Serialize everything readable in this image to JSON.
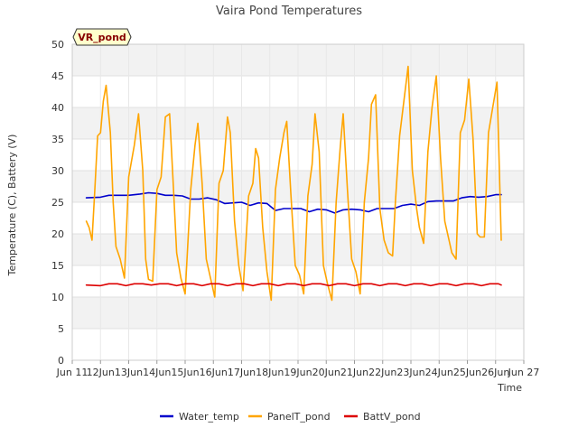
{
  "chart_data": {
    "type": "line",
    "title": "Vaira Pond Temperatures",
    "xlabel": "Time",
    "ylabel": "Temperature (C), Battery (V)",
    "badge": "VR_pond",
    "xlim": [
      11,
      27
    ],
    "ylim": [
      0,
      50
    ],
    "x_ticks": [
      {
        "value": 11,
        "label": "Jun 11"
      },
      {
        "value": 12,
        "label": "12Jun"
      },
      {
        "value": 13,
        "label": "13Jun"
      },
      {
        "value": 14,
        "label": "14Jun"
      },
      {
        "value": 15,
        "label": "15Jun"
      },
      {
        "value": 16,
        "label": "16Jun"
      },
      {
        "value": 17,
        "label": "17Jun"
      },
      {
        "value": 18,
        "label": "18Jun"
      },
      {
        "value": 19,
        "label": "19Jun"
      },
      {
        "value": 20,
        "label": "20Jun"
      },
      {
        "value": 21,
        "label": "21Jun"
      },
      {
        "value": 22,
        "label": "22Jun"
      },
      {
        "value": 23,
        "label": "23Jun"
      },
      {
        "value": 24,
        "label": "24Jun"
      },
      {
        "value": 25,
        "label": "25Jun"
      },
      {
        "value": 26,
        "label": "26Jun"
      },
      {
        "value": 27,
        "label": "Jun 27"
      }
    ],
    "y_ticks": [
      0,
      5,
      10,
      15,
      20,
      25,
      30,
      35,
      40,
      45,
      50
    ],
    "grid": true,
    "legend_position": "bottom",
    "x_unit": "day of June",
    "series": [
      {
        "name": "Water_temp",
        "color": "#0000cc",
        "x": [
          11.5,
          12.0,
          12.3,
          12.7,
          13.0,
          13.4,
          13.7,
          14.0,
          14.3,
          14.6,
          14.9,
          15.2,
          15.5,
          15.8,
          16.1,
          16.4,
          16.7,
          17.0,
          17.3,
          17.6,
          17.9,
          18.2,
          18.5,
          18.8,
          19.1,
          19.4,
          19.7,
          20.0,
          20.3,
          20.6,
          20.9,
          21.2,
          21.5,
          21.8,
          22.1,
          22.4,
          22.7,
          23.0,
          23.3,
          23.6,
          23.9,
          24.2,
          24.5,
          24.8,
          25.1,
          25.4,
          25.7,
          26.0,
          26.2
        ],
        "y": [
          25.7,
          25.8,
          26.1,
          26.1,
          26.1,
          26.3,
          26.5,
          26.4,
          26.1,
          26.1,
          26.0,
          25.5,
          25.5,
          25.7,
          25.4,
          24.8,
          24.9,
          25.0,
          24.5,
          24.9,
          24.8,
          23.7,
          24.0,
          24.0,
          24.0,
          23.5,
          23.9,
          23.8,
          23.3,
          23.8,
          23.9,
          23.8,
          23.5,
          24.0,
          24.0,
          24.0,
          24.5,
          24.7,
          24.5,
          25.1,
          25.2,
          25.2,
          25.2,
          25.7,
          25.9,
          25.8,
          25.9,
          26.2,
          26.2
        ]
      },
      {
        "name": "PanelT_pond",
        "color": "#ffa500",
        "x": [
          11.5,
          11.6,
          11.7,
          11.8,
          11.9,
          12.0,
          12.1,
          12.2,
          12.35,
          12.45,
          12.55,
          12.7,
          12.85,
          13.0,
          13.2,
          13.35,
          13.5,
          13.6,
          13.7,
          13.85,
          14.0,
          14.15,
          14.3,
          14.45,
          14.6,
          14.7,
          14.85,
          15.0,
          15.2,
          15.35,
          15.45,
          15.6,
          15.75,
          15.9,
          16.05,
          16.2,
          16.35,
          16.5,
          16.6,
          16.75,
          16.9,
          17.05,
          17.25,
          17.4,
          17.5,
          17.6,
          17.75,
          17.9,
          18.05,
          18.2,
          18.35,
          18.5,
          18.6,
          18.75,
          18.9,
          19.05,
          19.2,
          19.35,
          19.5,
          19.6,
          19.75,
          19.9,
          20.05,
          20.2,
          20.35,
          20.5,
          20.6,
          20.75,
          20.9,
          21.05,
          21.2,
          21.35,
          21.5,
          21.6,
          21.75,
          21.9,
          22.05,
          22.2,
          22.35,
          22.45,
          22.6,
          22.75,
          22.9,
          23.05,
          23.2,
          23.3,
          23.45,
          23.6,
          23.75,
          23.9,
          24.05,
          24.2,
          24.35,
          24.45,
          24.6,
          24.75,
          24.9,
          25.05,
          25.2,
          25.35,
          25.45,
          25.6,
          25.75,
          25.9,
          26.05,
          26.2
        ],
        "y": [
          22.0,
          21.0,
          19.0,
          27.0,
          35.5,
          36.0,
          41.0,
          43.5,
          36.0,
          25.0,
          18.0,
          16.0,
          13.0,
          29.0,
          34.0,
          39.0,
          30.0,
          16.0,
          12.8,
          12.5,
          27.0,
          29.0,
          38.5,
          39.0,
          26.0,
          17.0,
          13.0,
          10.5,
          27.0,
          34.0,
          37.5,
          28.0,
          16.0,
          13.0,
          10.0,
          28.0,
          30.0,
          38.5,
          36.0,
          22.0,
          15.0,
          11.0,
          26.0,
          28.0,
          33.5,
          32.0,
          21.0,
          14.0,
          9.5,
          27.0,
          32.0,
          36.0,
          37.8,
          26.0,
          15.0,
          13.5,
          10.5,
          26.0,
          31.0,
          39.0,
          33.0,
          15.0,
          12.0,
          9.5,
          25.0,
          34.0,
          39.0,
          27.0,
          16.0,
          14.0,
          10.5,
          25.0,
          32.0,
          40.5,
          42.0,
          24.0,
          19.0,
          17.0,
          16.5,
          25.0,
          35.5,
          41.0,
          46.5,
          30.0,
          24.0,
          21.0,
          18.5,
          33.0,
          40.0,
          45.0,
          32.0,
          22.0,
          19.0,
          17.0,
          16.0,
          36.0,
          38.0,
          44.5,
          35.0,
          20.0,
          19.5,
          19.5,
          36.0,
          40.0,
          44.0,
          19.0
        ]
      },
      {
        "name": "BattV_pond",
        "color": "#dd0000",
        "x": [
          11.5,
          12.0,
          12.3,
          12.6,
          12.9,
          13.2,
          13.5,
          13.8,
          14.1,
          14.4,
          14.7,
          15.0,
          15.3,
          15.6,
          15.9,
          16.2,
          16.5,
          16.8,
          17.1,
          17.4,
          17.7,
          18.0,
          18.3,
          18.6,
          18.9,
          19.2,
          19.5,
          19.8,
          20.1,
          20.4,
          20.7,
          21.0,
          21.3,
          21.6,
          21.9,
          22.2,
          22.5,
          22.8,
          23.1,
          23.4,
          23.7,
          24.0,
          24.3,
          24.6,
          24.9,
          25.2,
          25.5,
          25.8,
          26.1,
          26.2
        ],
        "y": [
          11.9,
          11.8,
          12.1,
          12.1,
          11.8,
          12.1,
          12.1,
          11.9,
          12.1,
          12.1,
          11.8,
          12.1,
          12.1,
          11.8,
          12.1,
          12.1,
          11.8,
          12.1,
          12.1,
          11.8,
          12.1,
          12.1,
          11.8,
          12.1,
          12.1,
          11.8,
          12.1,
          12.1,
          11.8,
          12.1,
          12.1,
          11.8,
          12.1,
          12.1,
          11.8,
          12.1,
          12.1,
          11.8,
          12.1,
          12.1,
          11.8,
          12.1,
          12.1,
          11.8,
          12.1,
          12.1,
          11.8,
          12.1,
          12.1,
          11.9
        ]
      }
    ]
  }
}
